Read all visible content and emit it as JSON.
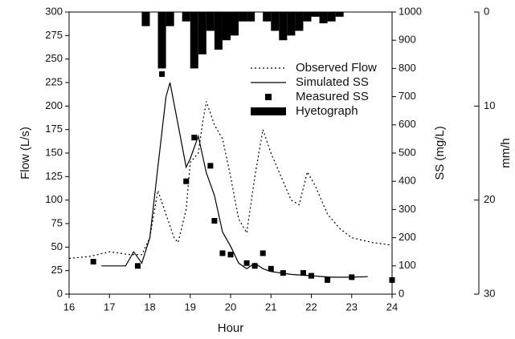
{
  "chart_data": {
    "type": "line",
    "x_label": "Hour",
    "y_label": "Flow (L/s)",
    "y2_label": "SS (mg/L)",
    "y3_label": "mm/h",
    "xlim": [
      16,
      24
    ],
    "xticks": [
      16,
      17,
      18,
      19,
      20,
      21,
      22,
      23,
      24
    ],
    "ylim": [
      0,
      300
    ],
    "yticks": [
      0,
      25,
      50,
      75,
      100,
      125,
      150,
      175,
      200,
      225,
      250,
      275,
      300
    ],
    "y2lim": [
      0,
      1000
    ],
    "y2ticks": [
      0,
      100,
      200,
      300,
      400,
      500,
      600,
      700,
      800,
      900,
      1000
    ],
    "y3lim": [
      30,
      0
    ],
    "y3ticks": [
      0,
      10,
      20,
      30
    ],
    "legend": "upper right",
    "series": [
      {
        "name": "Observed Flow",
        "style": "dotted",
        "color": "#000000",
        "axis": "y",
        "x": [
          16.0,
          16.5,
          17.0,
          17.5,
          17.8,
          18.0,
          18.2,
          18.4,
          18.6,
          18.7,
          18.9,
          19.0,
          19.2,
          19.3,
          19.4,
          19.6,
          19.8,
          20.0,
          20.2,
          20.4,
          20.6,
          20.8,
          21.0,
          21.2,
          21.5,
          21.7,
          21.9,
          22.1,
          22.4,
          22.7,
          23.0,
          23.5,
          24.0
        ],
        "values": [
          38,
          40,
          45,
          42,
          42,
          60,
          110,
          85,
          60,
          55,
          90,
          140,
          150,
          180,
          205,
          180,
          165,
          125,
          80,
          65,
          125,
          175,
          150,
          130,
          100,
          95,
          130,
          115,
          85,
          70,
          60,
          55,
          52
        ]
      },
      {
        "name": "Simulated SS",
        "style": "solid",
        "color": "#000000",
        "axis": "y2",
        "x": [
          16.8,
          17.4,
          17.6,
          17.8,
          18.0,
          18.2,
          18.4,
          18.5,
          18.7,
          18.9,
          19.0,
          19.2,
          19.4,
          19.6,
          19.8,
          20.0,
          20.2,
          20.4,
          20.6,
          20.8,
          21.0,
          21.5,
          22.0,
          22.5,
          23.0,
          23.4
        ],
        "values": [
          100,
          100,
          150,
          110,
          200,
          450,
          700,
          750,
          600,
          450,
          480,
          560,
          430,
          350,
          220,
          170,
          110,
          90,
          110,
          90,
          80,
          70,
          65,
          60,
          60,
          62
        ]
      },
      {
        "name": "Measured SS",
        "style": "markers",
        "color": "#000000",
        "axis": "y2",
        "x": [
          16.6,
          17.7,
          18.3,
          18.9,
          19.1,
          19.5,
          19.6,
          19.8,
          20.0,
          20.4,
          20.6,
          20.8,
          21.0,
          21.3,
          21.8,
          22.0,
          22.4,
          23.0,
          24.0
        ],
        "values": [
          115,
          100,
          780,
          400,
          555,
          455,
          260,
          145,
          140,
          110,
          100,
          145,
          90,
          75,
          75,
          65,
          50,
          60,
          50
        ]
      },
      {
        "name": "Hyetograph",
        "style": "bars",
        "color": "#000000",
        "axis": "y3",
        "x": [
          17.8,
          18.0,
          18.2,
          18.4,
          18.6,
          18.8,
          19.0,
          19.2,
          19.4,
          19.6,
          19.8,
          20.0,
          20.2,
          20.4,
          20.6,
          20.8,
          21.0,
          21.2,
          21.4,
          21.6,
          21.8,
          22.0,
          22.2,
          22.4,
          22.6
        ],
        "values": [
          1.5,
          0,
          6,
          1.5,
          0,
          1,
          6,
          4.5,
          2,
          4,
          3,
          2.5,
          1,
          1,
          0,
          1,
          2,
          3,
          2.5,
          2,
          1,
          0.5,
          1.2,
          1,
          0.5
        ]
      }
    ]
  }
}
